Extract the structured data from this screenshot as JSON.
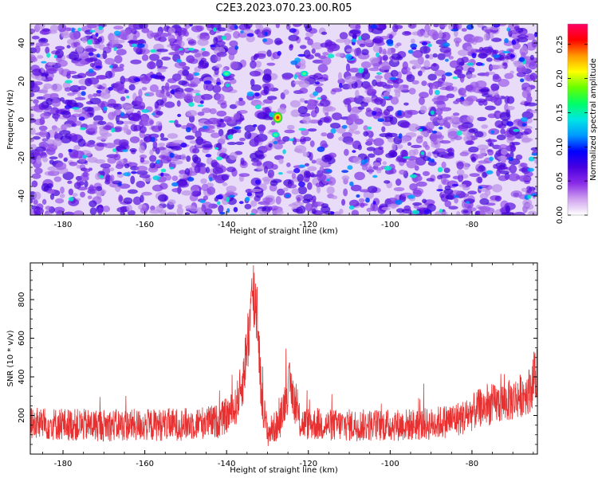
{
  "title": "C2E3.2023.070.23.00.R05",
  "chart_data": [
    {
      "type": "heatmap",
      "xlabel": "Height of straight line (km)",
      "ylabel": "Frequency (Hz)",
      "xlim": [
        -188,
        -64
      ],
      "ylim": [
        -50,
        50
      ],
      "xticks": [
        -180,
        -160,
        -140,
        -120,
        -100,
        -80
      ],
      "yticks": [
        -40,
        -20,
        0,
        20,
        40
      ],
      "grid": false,
      "colorbar": {
        "label": "Normalized spectral amplitude",
        "range": [
          0,
          0.28
        ],
        "ticks": [
          0.0,
          0.05,
          0.1,
          0.15,
          0.2,
          0.25
        ],
        "tick_labels": [
          "0.00",
          "0.05",
          "0.10",
          "0.15",
          "0.20",
          "0.25"
        ],
        "colors": [
          "#ffffff",
          "#cfa2ee",
          "#8a2ce8",
          "#4a00e0",
          "#0000ff",
          "#0099ff",
          "#00e5e5",
          "#00ff66",
          "#66ff00",
          "#ffff00",
          "#ff9900",
          "#ff0000",
          "#ff0066"
        ]
      },
      "field_description_values": {
        "background_level": 0.03,
        "peak": {
          "x": -127.5,
          "y": 1,
          "value": 0.24
        },
        "secondary_spots": [
          {
            "x": -128,
            "y": -8,
            "value": 0.12
          },
          {
            "x": -140,
            "y": 24,
            "value": 0.1
          },
          {
            "x": -121,
            "y": 24,
            "value": 0.09
          }
        ],
        "quiet_bands_x": [
          -135,
          -126,
          -113
        ]
      }
    },
    {
      "type": "line",
      "xlabel": "Height of straight line (km)",
      "ylabel": "SNR (10 * v/v)",
      "xlim": [
        -188,
        -64
      ],
      "ylim": [
        0,
        990
      ],
      "xticks": [
        -180,
        -160,
        -140,
        -120,
        -100,
        -80
      ],
      "yticks": [
        200,
        400,
        600,
        800
      ],
      "grid": false,
      "series": [
        {
          "color": "#e83030",
          "baseline": 150,
          "noise_amplitude": 90,
          "features": [
            {
              "x": [
                -140,
                -132
              ],
              "peak": 990,
              "desc": "main peak at -133"
            },
            {
              "x": [
                -127,
                -123
              ],
              "peak": 430,
              "desc": "secondary peak at -124"
            },
            {
              "x": [
                -80,
                -64
              ],
              "peak": 760,
              "desc": "rising noise at right edge"
            }
          ],
          "envelope": {
            "x": [
              -188,
              -175,
              -160,
              -150,
              -142,
              -138,
              -136,
              -134.5,
              -133.5,
              -132.5,
              -131.5,
              -130,
              -127,
              -125.5,
              -124.5,
              -123.5,
              -122,
              -115,
              -100,
              -90,
              -82,
              -78,
              -74,
              -70,
              -66,
              -64
            ],
            "y": [
              160,
              150,
              150,
              155,
              170,
              230,
              380,
              650,
              820,
              760,
              300,
              110,
              160,
              300,
              360,
              280,
              160,
              150,
              150,
              155,
              190,
              240,
              260,
              280,
              330,
              420
            ]
          }
        }
      ]
    }
  ]
}
